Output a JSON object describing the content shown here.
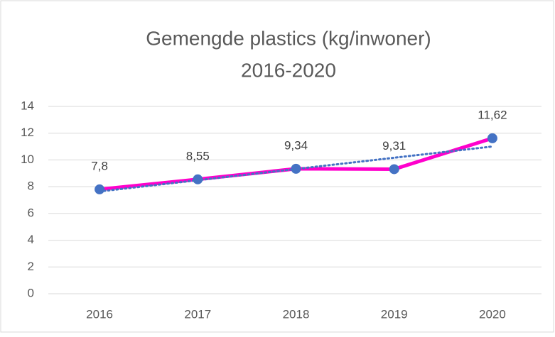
{
  "chart_data": {
    "type": "line",
    "title": [
      "Gemengde plastics (kg/inwoner)",
      "2016-2020"
    ],
    "categories": [
      "2016",
      "2017",
      "2018",
      "2019",
      "2020"
    ],
    "series": [
      {
        "name": "Gemengde plastics",
        "color": "#ff00cc",
        "marker_color": "#4472c4",
        "values": [
          7.8,
          8.55,
          9.34,
          9.31,
          11.62
        ],
        "value_labels": [
          "7,8",
          "8,55",
          "9,34",
          "9,31",
          "11,62"
        ]
      }
    ],
    "trendline": {
      "type": "linear",
      "color": "#4472c4",
      "style": "dotted"
    },
    "ylim": [
      0,
      14
    ],
    "yticks": [
      0,
      2,
      4,
      6,
      8,
      10,
      12,
      14
    ],
    "grid": true,
    "legend": false
  }
}
